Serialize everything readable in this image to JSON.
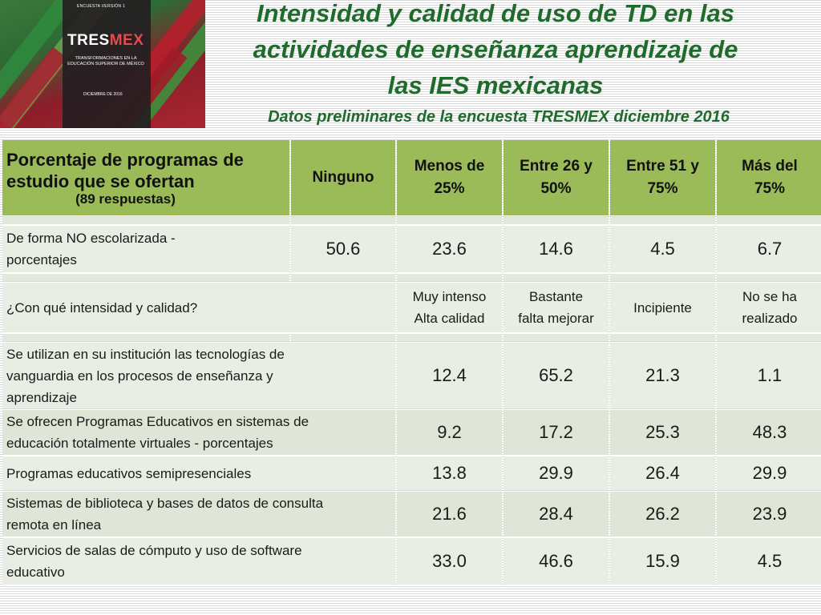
{
  "cover": {
    "edition": "ENCUESTA VERSIÓN 1",
    "brand_main": "TRES",
    "brand_accent": "MEX",
    "subtitle": "TRANSFORMACIONES EN LA EDUCACIÓN SUPERIOR DE MÉXICO",
    "date": "DICIEMBRE DE 2016"
  },
  "title": {
    "line1": "Intensidad y calidad de uso de TD en las",
    "line2": "actividades de enseñanza aprendizaje de",
    "line3": "las IES mexicanas"
  },
  "subtitle": "Datos preliminares de la encuesta TRESMEX diciembre 2016",
  "colors": {
    "title_green": "#1e6b2c",
    "header_green": "#9bbb59",
    "cell_bg": "#e9eee4"
  },
  "table": {
    "header": {
      "first_line1": "Porcentaje de programas de",
      "first_line2": "estudio que se ofertan",
      "respuestas": "(89 respuestas)",
      "col1": "Ninguno",
      "col2_line1": "Menos de",
      "col2_line2": "25%",
      "col3_line1": "Entre 26 y",
      "col3_line2": "50%",
      "col4_line1": "Entre 51 y",
      "col4_line2": "75%",
      "col5_line1": "Más del",
      "col5_line2": "75%"
    },
    "no_escolarizada": {
      "label_line1": "De forma NO escolarizada -",
      "label_line2": "porcentajes",
      "values": [
        "50.6",
        "23.6",
        "14.6",
        "4.5",
        "6.7"
      ]
    },
    "intensity_header": {
      "label": "¿Con qué intensidad y calidad?",
      "opt1_line1": "Muy intenso",
      "opt1_line2": "Alta calidad",
      "opt2_line1": "Bastante",
      "opt2_line2": "falta mejorar",
      "opt3": "Incipiente",
      "opt4_line1": "No se ha",
      "opt4_line2": "realizado"
    },
    "rows": [
      {
        "line1": "Se utilizan en su institución las tecnologías de",
        "line2": "vanguardia en los procesos de enseñanza y",
        "line3": "aprendizaje",
        "values": [
          "12.4",
          "65.2",
          "21.3",
          "1.1"
        ]
      },
      {
        "line1": "Se ofrecen Programas Educativos en sistemas de",
        "line2": "educación totalmente virtuales - porcentajes",
        "values": [
          "9.2",
          "17.2",
          "25.3",
          "48.3"
        ]
      },
      {
        "line1": "Programas educativos semipresenciales",
        "values": [
          "13.8",
          "29.9",
          "26.4",
          "29.9"
        ]
      },
      {
        "line1": "Sistemas de biblioteca y bases de datos de consulta",
        "line2": "remota en línea",
        "values": [
          "21.6",
          "28.4",
          "26.2",
          "23.9"
        ]
      },
      {
        "line1": "Servicios de salas de cómputo y uso de software",
        "line2": "educativo",
        "values": [
          "33.0",
          "46.6",
          "15.9",
          "4.5"
        ]
      }
    ]
  }
}
